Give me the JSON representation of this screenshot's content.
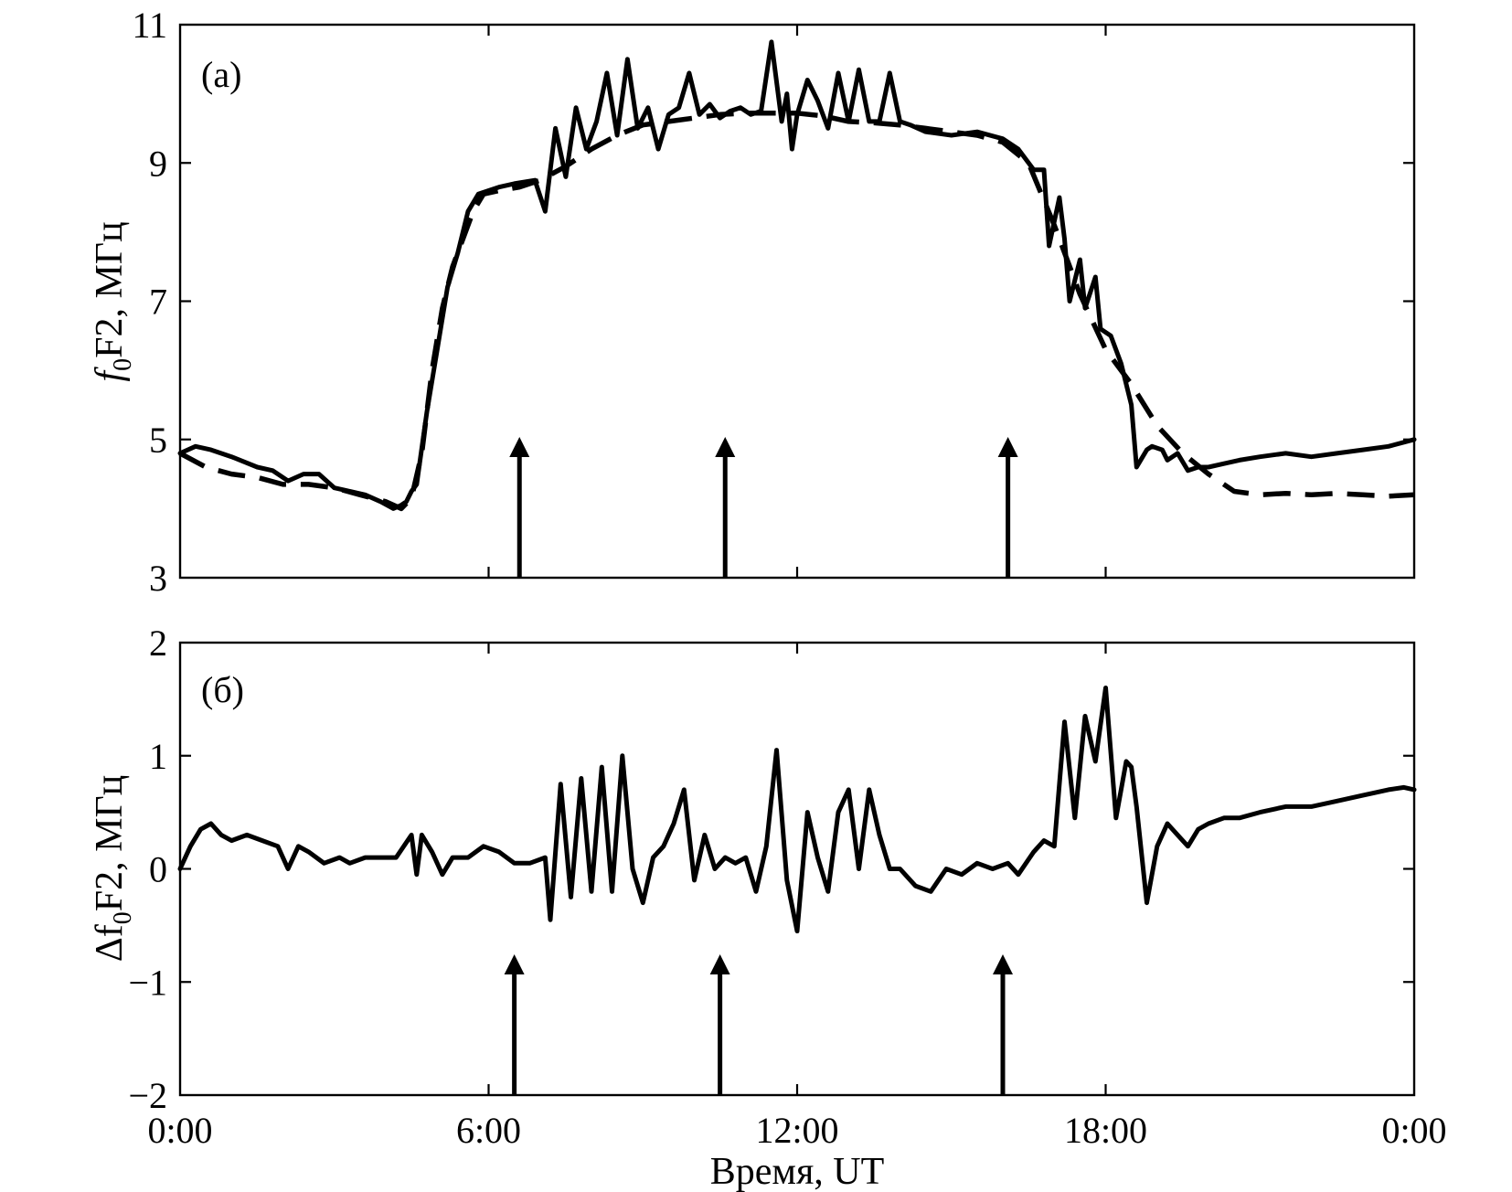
{
  "chart_data": [
    {
      "type": "line",
      "panel_label": "(а)",
      "ylabel": "f0F2, МГц",
      "ylabel_main": "f",
      "ylabel_sub": "0",
      "ylabel_rest": "F2, МГц",
      "ylim": [
        3,
        11
      ],
      "xlim": [
        0,
        24
      ],
      "yticks": [
        3,
        5,
        7,
        9,
        11
      ],
      "xticks": [
        0,
        6,
        12,
        18,
        24
      ],
      "grid": false,
      "arrows_x": [
        6.6,
        10.6,
        16.1
      ],
      "series": [
        {
          "style": "solid",
          "x": [
            0,
            0.3,
            0.6,
            1.0,
            1.5,
            1.8,
            2.1,
            2.4,
            2.7,
            3.0,
            3.3,
            3.6,
            3.9,
            4.15,
            4.3,
            4.4,
            4.5,
            4.6,
            4.8,
            5.0,
            5.2,
            5.4,
            5.6,
            5.8,
            6.0,
            6.2,
            6.5,
            6.9,
            7.1,
            7.3,
            7.5,
            7.7,
            7.9,
            8.1,
            8.3,
            8.5,
            8.7,
            8.9,
            9.1,
            9.3,
            9.5,
            9.7,
            9.9,
            10.1,
            10.3,
            10.5,
            10.7,
            10.9,
            11.1,
            11.3,
            11.5,
            11.7,
            11.8,
            11.9,
            12.0,
            12.2,
            12.4,
            12.6,
            12.8,
            13.0,
            13.2,
            13.4,
            13.6,
            13.8,
            14.0,
            14.2,
            14.5,
            15.0,
            15.5,
            16.0,
            16.3,
            16.6,
            16.8,
            16.9,
            17.1,
            17.2,
            17.3,
            17.5,
            17.6,
            17.8,
            17.9,
            18.1,
            18.3,
            18.5,
            18.6,
            18.8,
            18.9,
            19.1,
            19.2,
            19.4,
            19.6,
            19.8,
            20.0,
            20.3,
            20.6,
            21.0,
            21.5,
            22.0,
            22.5,
            23.0,
            23.5,
            24.0
          ],
          "y": [
            4.8,
            4.9,
            4.85,
            4.75,
            4.6,
            4.55,
            4.4,
            4.5,
            4.5,
            4.3,
            4.25,
            4.2,
            4.1,
            4.0,
            4.05,
            4.1,
            4.25,
            4.35,
            5.4,
            6.3,
            7.2,
            7.7,
            8.3,
            8.55,
            8.6,
            8.65,
            8.7,
            8.75,
            8.3,
            9.5,
            8.8,
            9.8,
            9.2,
            9.6,
            10.3,
            9.4,
            10.5,
            9.5,
            9.8,
            9.2,
            9.7,
            9.8,
            10.3,
            9.7,
            9.85,
            9.65,
            9.75,
            9.8,
            9.7,
            9.75,
            10.75,
            9.6,
            10.0,
            9.2,
            9.7,
            10.2,
            9.9,
            9.5,
            10.3,
            9.6,
            10.35,
            9.6,
            9.6,
            10.3,
            9.6,
            9.55,
            9.45,
            9.4,
            9.45,
            9.35,
            9.2,
            8.9,
            8.9,
            7.8,
            8.5,
            7.9,
            7.0,
            7.6,
            6.9,
            7.35,
            6.6,
            6.5,
            6.1,
            5.5,
            4.6,
            4.85,
            4.9,
            4.85,
            4.7,
            4.8,
            4.55,
            4.6,
            4.6,
            4.65,
            4.7,
            4.75,
            4.8,
            4.75,
            4.8,
            4.85,
            4.9,
            5.0
          ]
        },
        {
          "style": "dashed",
          "x": [
            0,
            0.5,
            1.0,
            1.5,
            2.0,
            2.5,
            3.0,
            3.5,
            4.0,
            4.3,
            4.5,
            4.7,
            4.9,
            5.1,
            5.3,
            5.5,
            5.7,
            5.9,
            6.2,
            6.6,
            7.0,
            7.5,
            8.0,
            8.5,
            9.0,
            9.5,
            10.0,
            10.5,
            11.0,
            11.5,
            12.0,
            12.5,
            13.0,
            13.5,
            14.0,
            14.5,
            15.0,
            15.5,
            16.0,
            16.5,
            17.0,
            17.5,
            18.0,
            18.5,
            19.0,
            19.5,
            20.0,
            20.5,
            21.0,
            21.5,
            22.0,
            22.5,
            23.0,
            23.5,
            24.0
          ],
          "y": [
            4.8,
            4.6,
            4.5,
            4.45,
            4.35,
            4.35,
            4.3,
            4.2,
            4.1,
            4.0,
            4.15,
            4.8,
            6.0,
            6.9,
            7.5,
            7.9,
            8.3,
            8.55,
            8.6,
            8.65,
            8.75,
            8.95,
            9.2,
            9.4,
            9.55,
            9.6,
            9.65,
            9.7,
            9.72,
            9.72,
            9.72,
            9.68,
            9.6,
            9.58,
            9.55,
            9.5,
            9.45,
            9.4,
            9.3,
            9.0,
            8.1,
            7.1,
            6.3,
            5.8,
            5.2,
            4.8,
            4.5,
            4.25,
            4.2,
            4.22,
            4.2,
            4.22,
            4.2,
            4.18,
            4.2
          ]
        }
      ]
    },
    {
      "type": "line",
      "panel_label": "(б)",
      "ylabel": "Δf0F2, МГц",
      "ylabel_main": "Δf",
      "ylabel_sub": "0",
      "ylabel_rest": "F2, МГц",
      "ylim": [
        -2,
        2
      ],
      "xlim": [
        0,
        24
      ],
      "yticks": [
        -2,
        -1,
        0,
        1,
        2
      ],
      "ytick_labels": [
        "−2",
        "−1",
        "0",
        "1",
        "2"
      ],
      "xticks": [
        0,
        6,
        12,
        18,
        24
      ],
      "xtick_labels": [
        "0:00",
        "6:00",
        "12:00",
        "18:00",
        "0:00"
      ],
      "xlabel": "Время, UT",
      "grid": false,
      "arrows_x": [
        6.5,
        10.5,
        16.0
      ],
      "series": [
        {
          "style": "solid",
          "x": [
            0,
            0.2,
            0.4,
            0.6,
            0.8,
            1.0,
            1.3,
            1.6,
            1.9,
            2.1,
            2.3,
            2.5,
            2.8,
            3.1,
            3.3,
            3.6,
            3.9,
            4.2,
            4.5,
            4.6,
            4.7,
            4.9,
            5.1,
            5.3,
            5.6,
            5.9,
            6.2,
            6.5,
            6.8,
            7.1,
            7.2,
            7.4,
            7.6,
            7.8,
            8.0,
            8.2,
            8.4,
            8.6,
            8.8,
            9.0,
            9.2,
            9.4,
            9.6,
            9.8,
            10.0,
            10.2,
            10.4,
            10.6,
            10.8,
            11.0,
            11.2,
            11.4,
            11.6,
            11.8,
            12.0,
            12.2,
            12.4,
            12.6,
            12.8,
            13.0,
            13.2,
            13.4,
            13.6,
            13.8,
            14.0,
            14.3,
            14.6,
            14.9,
            15.2,
            15.5,
            15.8,
            16.1,
            16.3,
            16.6,
            16.8,
            17.0,
            17.2,
            17.4,
            17.6,
            17.8,
            18.0,
            18.2,
            18.4,
            18.5,
            18.6,
            18.8,
            19.0,
            19.2,
            19.4,
            19.6,
            19.8,
            20.0,
            20.3,
            20.6,
            21.0,
            21.5,
            22.0,
            22.5,
            23.0,
            23.5,
            23.8,
            24.0
          ],
          "y": [
            0.0,
            0.2,
            0.35,
            0.4,
            0.3,
            0.25,
            0.3,
            0.25,
            0.2,
            0.0,
            0.2,
            0.15,
            0.05,
            0.1,
            0.05,
            0.1,
            0.1,
            0.1,
            0.3,
            -0.05,
            0.3,
            0.15,
            -0.05,
            0.1,
            0.1,
            0.2,
            0.15,
            0.05,
            0.05,
            0.1,
            -0.45,
            0.75,
            -0.25,
            0.8,
            -0.2,
            0.9,
            -0.2,
            1.0,
            0.0,
            -0.3,
            0.1,
            0.2,
            0.4,
            0.7,
            -0.1,
            0.3,
            0.0,
            0.1,
            0.05,
            0.1,
            -0.2,
            0.2,
            1.05,
            -0.1,
            -0.55,
            0.5,
            0.1,
            -0.2,
            0.5,
            0.7,
            0.0,
            0.7,
            0.3,
            0.0,
            0.0,
            -0.15,
            -0.2,
            0.0,
            -0.05,
            0.05,
            0.0,
            0.05,
            -0.05,
            0.15,
            0.25,
            0.2,
            1.3,
            0.45,
            1.35,
            0.95,
            1.6,
            0.45,
            0.95,
            0.9,
            0.55,
            -0.3,
            0.2,
            0.4,
            0.3,
            0.2,
            0.35,
            0.4,
            0.45,
            0.45,
            0.5,
            0.55,
            0.55,
            0.6,
            0.65,
            0.7,
            0.72,
            0.7
          ]
        }
      ]
    }
  ]
}
